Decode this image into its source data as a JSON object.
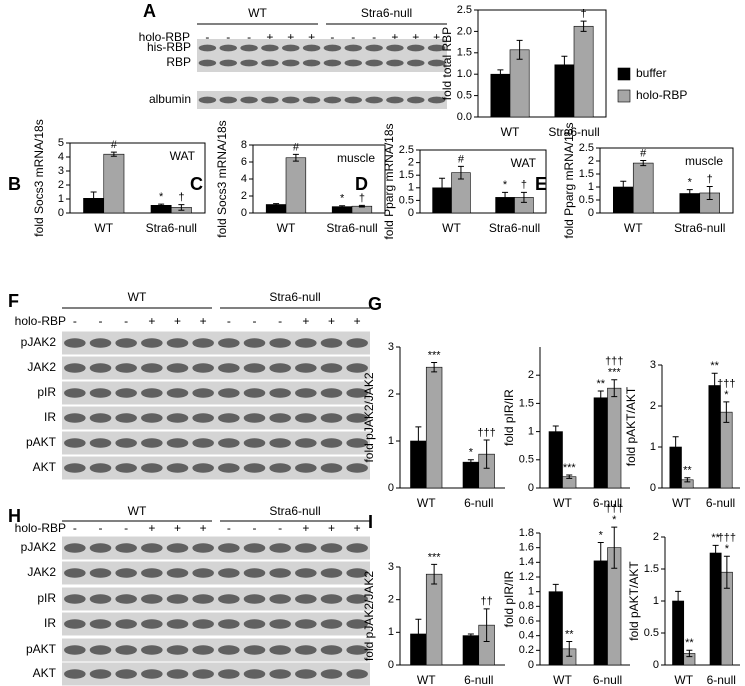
{
  "blots": [
    {
      "panel": "A",
      "groups": [
        "WT",
        "Stra6-null"
      ],
      "treatment": "holo-RBP",
      "signs": [
        "-",
        "-",
        "-",
        "+",
        "+",
        "+",
        "-",
        "-",
        "-",
        "+",
        "+",
        "+"
      ],
      "rows": [
        "his-RBP",
        "RBP",
        "albumin"
      ]
    },
    {
      "panel": "F",
      "groups": [
        "WT",
        "Stra6-null"
      ],
      "treatment": "holo-RBP",
      "signs": [
        "-",
        "-",
        "-",
        "+",
        "+",
        "+",
        "-",
        "-",
        "-",
        "+",
        "+",
        "+"
      ],
      "rows": [
        "pJAK2",
        "JAK2",
        "pIR",
        "IR",
        "pAKT",
        "AKT"
      ]
    },
    {
      "panel": "H",
      "groups": [
        "WT",
        "Stra6-null"
      ],
      "treatment": "holo-RBP",
      "signs": [
        "-",
        "-",
        "-",
        "+",
        "+",
        "+",
        "-",
        "-",
        "-",
        "+",
        "+",
        "+"
      ],
      "rows": [
        "pJAK2",
        "JAK2",
        "pIR",
        "IR",
        "pAKT",
        "AKT"
      ]
    }
  ],
  "chart_data": [
    {
      "type": "bar",
      "ylabel": "fold total RBP",
      "categories": [
        "WT",
        "Stra6-null"
      ],
      "series": [
        {
          "name": "buffer",
          "color": "#000000",
          "values": [
            1.0,
            1.22
          ],
          "errors": [
            0.1,
            0.2
          ],
          "marks": [
            [],
            []
          ]
        },
        {
          "name": "holo-RBP",
          "color": "#a6a6a6",
          "values": [
            1.57,
            2.12
          ],
          "errors": [
            0.22,
            0.12
          ],
          "marks": [
            [],
            [
              "†"
            ]
          ]
        }
      ],
      "ylim": [
        0,
        2.5
      ],
      "yticks": [
        {
          "value": 0,
          "label": "0.0"
        },
        0.5,
        {
          "value": 1,
          "label": "1.0"
        },
        1.5,
        {
          "value": 2,
          "label": "2.0"
        },
        2.5
      ],
      "legend": "right"
    },
    {
      "type": "bar",
      "panel": "B",
      "ylabel": "fold Socs3 mRNA/18s",
      "note": "WAT",
      "categories": [
        "WT",
        "Stra6-null"
      ],
      "series": [
        {
          "color": "#000000",
          "values": [
            1.05,
            0.55
          ],
          "errors": [
            0.45,
            0.08
          ],
          "marks": [
            [],
            [
              "*"
            ]
          ]
        },
        {
          "color": "#a6a6a6",
          "values": [
            4.2,
            0.4
          ],
          "errors": [
            0.15,
            0.2
          ],
          "marks": [
            [
              "#"
            ],
            [
              "†"
            ]
          ]
        }
      ],
      "ylim": [
        0,
        5
      ],
      "yticks": [
        0,
        1,
        2,
        3,
        4,
        5
      ]
    },
    {
      "type": "bar",
      "panel": "C",
      "ylabel": "fold Socs3 mRNA/18s",
      "note": "muscle",
      "categories": [
        "WT",
        "Stra6-null"
      ],
      "series": [
        {
          "color": "#000000",
          "values": [
            1.0,
            0.75
          ],
          "errors": [
            0.1,
            0.1
          ],
          "marks": [
            [],
            [
              "*"
            ]
          ]
        },
        {
          "color": "#a6a6a6",
          "values": [
            6.5,
            0.8
          ],
          "errors": [
            0.4,
            0.1
          ],
          "marks": [
            [
              "#"
            ],
            [
              "†"
            ]
          ]
        }
      ],
      "ylim": [
        0,
        8
      ],
      "yticks": [
        0,
        2,
        4,
        6,
        8
      ]
    },
    {
      "type": "bar",
      "panel": "D",
      "ylabel": "fold Pparg mRNA/18s",
      "note": "WAT",
      "categories": [
        "WT",
        "Stra6-null"
      ],
      "series": [
        {
          "color": "#000000",
          "values": [
            1.0,
            0.62
          ],
          "errors": [
            0.38,
            0.2
          ],
          "marks": [
            [],
            [
              "*"
            ]
          ]
        },
        {
          "color": "#a6a6a6",
          "values": [
            1.6,
            0.62
          ],
          "errors": [
            0.25,
            0.2
          ],
          "marks": [
            [
              "#"
            ],
            [
              "†"
            ]
          ]
        }
      ],
      "ylim": [
        0,
        2.5
      ],
      "yticks": [
        0,
        0.5,
        1,
        1.5,
        2,
        2.5
      ]
    },
    {
      "type": "bar",
      "panel": "E",
      "ylabel": "fold Pparg mRNA/18s",
      "note": "muscle",
      "categories": [
        "WT",
        "Stra6-null"
      ],
      "series": [
        {
          "color": "#000000",
          "values": [
            1.0,
            0.75
          ],
          "errors": [
            0.22,
            0.15
          ],
          "marks": [
            [],
            [
              "*"
            ]
          ]
        },
        {
          "color": "#a6a6a6",
          "values": [
            1.92,
            0.77
          ],
          "errors": [
            0.1,
            0.25
          ],
          "marks": [
            [
              "#"
            ],
            [
              "†"
            ]
          ]
        }
      ],
      "ylim": [
        0,
        2.5
      ],
      "yticks": [
        0,
        0.5,
        1,
        1.5,
        2,
        2.5
      ]
    },
    {
      "type": "bar",
      "panel": "G",
      "ylabel": "fold pJAK2/JAK2",
      "categories": [
        "WT",
        "6-null"
      ],
      "series": [
        {
          "color": "#000000",
          "values": [
            1.0,
            0.55
          ],
          "errors": [
            0.3,
            0.05
          ],
          "marks": [
            [],
            [
              "*"
            ]
          ]
        },
        {
          "color": "#a6a6a6",
          "values": [
            2.57,
            0.72
          ],
          "errors": [
            0.1,
            0.3
          ],
          "marks": [
            [
              "***"
            ],
            [
              "†††"
            ]
          ]
        }
      ],
      "ylim": [
        0,
        3
      ],
      "yticks": [
        0,
        1,
        2,
        3
      ]
    },
    {
      "type": "bar",
      "ylabel": "fold pIR/IR",
      "categories": [
        "WT",
        "6-null"
      ],
      "series": [
        {
          "color": "#000000",
          "values": [
            1.0,
            1.6
          ],
          "errors": [
            0.1,
            0.12
          ],
          "marks": [
            [],
            [
              "**"
            ]
          ]
        },
        {
          "color": "#a6a6a6",
          "values": [
            0.2,
            1.77
          ],
          "errors": [
            0.03,
            0.15
          ],
          "marks": [
            [
              "***"
            ],
            [
              "†††",
              "***"
            ]
          ]
        }
      ],
      "ylim": [
        0,
        2.5
      ],
      "yticks": [
        0,
        0.5,
        1,
        1.5,
        2
      ]
    },
    {
      "type": "bar",
      "ylabel": "fold pAKT/AKT",
      "categories": [
        "WT",
        "6-null"
      ],
      "series": [
        {
          "color": "#000000",
          "values": [
            1.0,
            2.5
          ],
          "errors": [
            0.25,
            0.3
          ],
          "marks": [
            [],
            [
              "**"
            ]
          ]
        },
        {
          "color": "#a6a6a6",
          "values": [
            0.2,
            1.85
          ],
          "errors": [
            0.05,
            0.25
          ],
          "marks": [
            [
              "**"
            ],
            [
              "†††",
              "*"
            ]
          ]
        }
      ],
      "ylim": [
        0,
        3
      ],
      "yticks": [
        0,
        1,
        2,
        3
      ]
    },
    {
      "type": "bar",
      "panel": "I",
      "ylabel": "fold pJAK2/JAK2",
      "categories": [
        "WT",
        "6-null"
      ],
      "series": [
        {
          "color": "#000000",
          "values": [
            0.95,
            0.9
          ],
          "errors": [
            0.45,
            0.05
          ],
          "marks": [
            [],
            []
          ]
        },
        {
          "color": "#a6a6a6",
          "values": [
            2.78,
            1.22
          ],
          "errors": [
            0.3,
            0.5
          ],
          "marks": [
            [
              "***"
            ],
            [
              "††"
            ]
          ]
        }
      ],
      "ylim": [
        0,
        3
      ],
      "yticks": [
        0,
        1,
        2,
        3
      ]
    },
    {
      "type": "bar",
      "ylabel": "fold pIR/IR",
      "categories": [
        "WT",
        "6-null"
      ],
      "series": [
        {
          "color": "#000000",
          "values": [
            1.0,
            1.42
          ],
          "errors": [
            0.1,
            0.25
          ],
          "marks": [
            [],
            [
              "*"
            ]
          ]
        },
        {
          "color": "#a6a6a6",
          "values": [
            0.22,
            1.6
          ],
          "errors": [
            0.1,
            0.28
          ],
          "marks": [
            [
              "**"
            ],
            [
              "†††",
              "*"
            ]
          ]
        }
      ],
      "ylim": [
        0,
        1.8
      ],
      "yticks": [
        0,
        0.2,
        0.4,
        0.6,
        0.8,
        1,
        1.2,
        1.4,
        1.6,
        1.8
      ]
    },
    {
      "type": "bar",
      "ylabel": "fold pAKT/AKT",
      "categories": [
        "WT",
        "6-null"
      ],
      "series": [
        {
          "color": "#000000",
          "values": [
            1.0,
            1.75
          ],
          "errors": [
            0.15,
            0.12
          ],
          "marks": [
            [],
            [
              "**"
            ]
          ]
        },
        {
          "color": "#a6a6a6",
          "values": [
            0.18,
            1.45
          ],
          "errors": [
            0.05,
            0.25
          ],
          "marks": [
            [
              "**"
            ],
            [
              "†††",
              "*"
            ]
          ]
        }
      ],
      "ylim": [
        0,
        2
      ],
      "yticks": [
        0,
        0.5,
        1,
        1.5,
        2
      ]
    }
  ]
}
